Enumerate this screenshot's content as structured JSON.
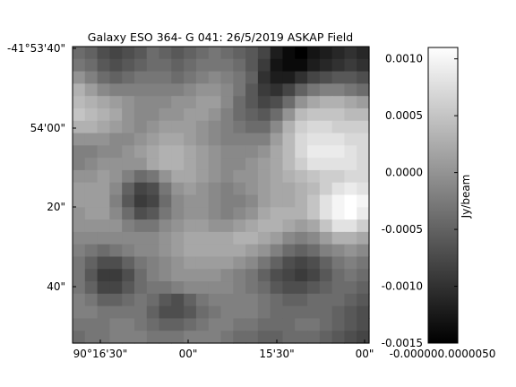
{
  "chart_data": {
    "type": "heatmap",
    "title": "Galaxy ESO 364- G 041: 26/5/2019 ASKAP Field",
    "colormap": "gray",
    "x_ticks": [
      "90°16'30\"",
      "00\"",
      "15'30\"",
      "00\""
    ],
    "y_ticks": [
      "-41°53'40\"",
      "54'00\"",
      "20\"",
      "40\""
    ],
    "colorbar": {
      "label": "Jy/beam",
      "vmin": -0.0015,
      "vmax": 0.0011,
      "ticks": [
        {
          "value": 0.001,
          "label": "0.0010"
        },
        {
          "value": 0.0005,
          "label": "0.0005"
        },
        {
          "value": 0.0,
          "label": "0.0000"
        },
        {
          "value": -0.0005,
          "label": "-0.0005"
        },
        {
          "value": -0.001,
          "label": "-0.0010"
        },
        {
          "value": -0.0015,
          "label": "-0.0015"
        }
      ],
      "bottom_labels": "-0.000000.0000050"
    },
    "grid_rows": 24,
    "grid_cols": 24,
    "values": [
      [
        -0.0004,
        -0.0005,
        -0.0007,
        -0.0008,
        -0.0007,
        -0.0006,
        -0.0004,
        -0.0005,
        -0.0006,
        -0.0005,
        -0.0004,
        -0.0003,
        -0.0004,
        -0.0005,
        -0.0006,
        -0.0008,
        -0.0012,
        -0.0014,
        -0.0015,
        -0.0013,
        -0.0012,
        -0.0011,
        -0.001,
        -0.0011
      ],
      [
        -0.0003,
        -0.0004,
        -0.0006,
        -0.0007,
        -0.0006,
        -0.0005,
        -0.0004,
        -0.0004,
        -0.0005,
        -0.0004,
        -0.0003,
        -0.0003,
        -0.0003,
        -0.0004,
        -0.0006,
        -0.0009,
        -0.0013,
        -0.0014,
        -0.0014,
        -0.0012,
        -0.0011,
        -0.001,
        -0.0009,
        -0.001
      ],
      [
        0.0,
        -0.0002,
        -0.0004,
        -0.0005,
        -0.0004,
        -0.0003,
        -0.0003,
        -0.0003,
        -0.0004,
        -0.0003,
        -0.0002,
        -0.0001,
        -0.0002,
        -0.0003,
        -0.0005,
        -0.001,
        -0.0012,
        -0.0012,
        -0.001,
        -0.0008,
        -0.0007,
        -0.0006,
        -0.0006,
        -0.0007
      ],
      [
        0.0003,
        0.0001,
        -0.0001,
        -0.0002,
        -0.0002,
        -0.0002,
        -0.0002,
        -0.0002,
        -0.0002,
        -0.0001,
        0.0,
        0.0,
        -0.0001,
        -0.0003,
        -0.0006,
        -0.0009,
        -0.001,
        -0.0008,
        -0.0005,
        -0.0003,
        -0.0002,
        -0.0002,
        -0.0003,
        -0.0004
      ],
      [
        0.0004,
        0.0003,
        0.0002,
        0.0001,
        0.0,
        -0.0001,
        -0.0001,
        -0.0001,
        0.0,
        0.0,
        0.0001,
        0.0001,
        -0.0001,
        -0.0004,
        -0.0006,
        -0.0008,
        -0.0007,
        -0.0004,
        0.0,
        0.0002,
        0.0003,
        0.0003,
        0.0002,
        0.0001
      ],
      [
        0.0005,
        0.0004,
        0.0003,
        0.0002,
        0.0,
        -0.0001,
        -0.0001,
        0.0,
        0.0,
        0.0001,
        0.0001,
        0.0,
        -0.0002,
        -0.0004,
        -0.0005,
        -0.0006,
        -0.0004,
        0.0,
        0.0004,
        0.0005,
        0.0005,
        0.0005,
        0.0004,
        0.0004
      ],
      [
        0.0003,
        0.0003,
        0.0002,
        0.0001,
        0.0,
        -0.0001,
        0.0,
        0.0001,
        0.0001,
        0.0001,
        0.0,
        -0.0001,
        -0.0002,
        -0.0003,
        -0.0004,
        -0.0004,
        -0.0001,
        0.0003,
        0.0006,
        0.0007,
        0.0007,
        0.0006,
        0.0006,
        0.0006
      ],
      [
        0.0,
        0.0,
        0.0,
        -0.0001,
        -0.0001,
        0.0,
        0.0001,
        0.0002,
        0.0002,
        0.0001,
        0.0,
        -0.0001,
        -0.0002,
        -0.0002,
        -0.0002,
        -0.0002,
        0.0001,
        0.0004,
        0.0007,
        0.0008,
        0.0008,
        0.0008,
        0.0007,
        0.0007
      ],
      [
        -0.0002,
        -0.0002,
        -0.0001,
        -0.0001,
        0.0,
        0.0001,
        0.0002,
        0.0003,
        0.0003,
        0.0002,
        0.0001,
        0.0,
        -0.0001,
        -0.0001,
        -0.0001,
        0.0,
        0.0002,
        0.0004,
        0.0007,
        0.0009,
        0.0009,
        0.0009,
        0.0008,
        0.0007
      ],
      [
        -0.0002,
        -0.0001,
        0.0,
        0.0,
        0.0,
        0.0,
        0.0002,
        0.0003,
        0.0003,
        0.0002,
        0.0001,
        0.0,
        -0.0001,
        -0.0001,
        0.0,
        0.0001,
        0.0002,
        0.0004,
        0.0006,
        0.0008,
        0.0008,
        0.0008,
        0.0008,
        0.0007
      ],
      [
        0.0,
        0.0,
        0.0001,
        0.0,
        -0.0002,
        -0.0004,
        -0.0003,
        0.0,
        0.0002,
        0.0002,
        0.0001,
        0.0,
        -0.0001,
        0.0,
        0.0,
        0.0001,
        0.0002,
        0.0003,
        0.0004,
        0.0005,
        0.0006,
        0.0006,
        0.0007,
        0.0007
      ],
      [
        0.0001,
        0.0001,
        0.0001,
        -0.0001,
        -0.0005,
        -0.0008,
        -0.0007,
        -0.0003,
        0.0,
        0.0001,
        0.0,
        -0.0001,
        -0.0002,
        -0.0001,
        0.0,
        0.0001,
        0.0002,
        0.0002,
        0.0003,
        0.0004,
        0.0006,
        0.0008,
        0.0009,
        0.0008
      ],
      [
        0.0001,
        0.0001,
        0.0001,
        -0.0002,
        -0.0006,
        -0.0009,
        -0.0008,
        -0.0004,
        -0.0001,
        0.0,
        0.0,
        -0.0001,
        -0.0002,
        -0.0002,
        -0.0001,
        0.0001,
        0.0002,
        0.0002,
        0.0003,
        0.0005,
        0.0008,
        0.001,
        0.0011,
        0.001
      ],
      [
        0.0,
        0.0001,
        0.0001,
        -0.0001,
        -0.0004,
        -0.0007,
        -0.0006,
        -0.0003,
        -0.0001,
        0.0,
        0.0,
        -0.0001,
        -0.0002,
        -0.0001,
        0.0,
        0.0002,
        0.0003,
        0.0003,
        0.0003,
        0.0005,
        0.0008,
        0.001,
        0.0011,
        0.0009
      ],
      [
        0.0,
        0.0,
        0.0,
        0.0,
        -0.0002,
        -0.0003,
        -0.0003,
        -0.0001,
        0.0,
        0.0001,
        0.0001,
        0.0,
        0.0,
        0.0001,
        0.0002,
        0.0003,
        0.0003,
        0.0002,
        0.0001,
        0.0002,
        0.0005,
        0.0008,
        0.0008,
        0.0006
      ],
      [
        -0.0001,
        -0.0001,
        -0.0001,
        -0.0001,
        -0.0001,
        -0.0001,
        -0.0001,
        0.0,
        0.0001,
        0.0002,
        0.0002,
        0.0002,
        0.0002,
        0.0003,
        0.0003,
        0.0002,
        0.0001,
        -0.0001,
        -0.0002,
        -0.0001,
        0.0001,
        0.0003,
        0.0003,
        0.0002
      ],
      [
        -0.0002,
        -0.0003,
        -0.0004,
        -0.0003,
        -0.0002,
        -0.0001,
        -0.0001,
        0.0,
        0.0001,
        0.0002,
        0.0002,
        0.0002,
        0.0002,
        0.0002,
        0.0001,
        0.0,
        -0.0002,
        -0.0004,
        -0.0005,
        -0.0004,
        -0.0002,
        -0.0001,
        0.0,
        -0.0001
      ],
      [
        -0.0003,
        -0.0005,
        -0.0007,
        -0.0007,
        -0.0005,
        -0.0003,
        -0.0002,
        -0.0001,
        0.0,
        0.0001,
        0.0001,
        0.0001,
        0.0001,
        0.0,
        -0.0001,
        -0.0003,
        -0.0005,
        -0.0007,
        -0.0008,
        -0.0007,
        -0.0005,
        -0.0003,
        -0.0002,
        -0.0003
      ],
      [
        -0.0003,
        -0.0006,
        -0.0009,
        -0.0009,
        -0.0007,
        -0.0004,
        -0.0002,
        -0.0001,
        0.0,
        0.0,
        0.0,
        0.0,
        -0.0001,
        -0.0002,
        -0.0003,
        -0.0005,
        -0.0007,
        -0.0008,
        -0.0009,
        -0.0008,
        -0.0006,
        -0.0004,
        -0.0003,
        -0.0004
      ],
      [
        -0.0003,
        -0.0005,
        -0.0008,
        -0.0008,
        -0.0006,
        -0.0004,
        -0.0003,
        -0.0003,
        -0.0002,
        -0.0001,
        -0.0001,
        -0.0001,
        -0.0001,
        -0.0002,
        -0.0003,
        -0.0004,
        -0.0006,
        -0.0007,
        -0.0007,
        -0.0006,
        -0.0005,
        -0.0004,
        -0.0004,
        -0.0005
      ],
      [
        -0.0002,
        -0.0003,
        -0.0005,
        -0.0005,
        -0.0004,
        -0.0003,
        -0.0004,
        -0.0006,
        -0.0007,
        -0.0005,
        -0.0003,
        -0.0002,
        -0.0002,
        -0.0002,
        -0.0002,
        -0.0003,
        -0.0004,
        -0.0005,
        -0.0005,
        -0.0004,
        -0.0004,
        -0.0004,
        -0.0005,
        -0.0006
      ],
      [
        -0.0002,
        -0.0002,
        -0.0003,
        -0.0003,
        -0.0003,
        -0.0003,
        -0.0005,
        -0.0007,
        -0.0007,
        -0.0006,
        -0.0004,
        -0.0003,
        -0.0002,
        -0.0002,
        -0.0002,
        -0.0003,
        -0.0004,
        -0.0004,
        -0.0004,
        -0.0004,
        -0.0004,
        -0.0005,
        -0.0006,
        -0.0007
      ],
      [
        -0.0003,
        -0.0003,
        -0.0003,
        -0.0002,
        -0.0002,
        -0.0003,
        -0.0004,
        -0.0005,
        -0.0005,
        -0.0004,
        -0.0003,
        -0.0002,
        -0.0002,
        -0.0003,
        -0.0003,
        -0.0004,
        -0.0004,
        -0.0004,
        -0.0003,
        -0.0003,
        -0.0004,
        -0.0005,
        -0.0006,
        -0.0007
      ],
      [
        -0.0004,
        -0.0003,
        -0.0003,
        -0.0002,
        -0.0002,
        -0.0002,
        -0.0003,
        -0.0003,
        -0.0003,
        -0.0002,
        -0.0002,
        -0.0002,
        -0.0003,
        -0.0004,
        -0.0004,
        -0.0005,
        -0.0005,
        -0.0004,
        -0.0004,
        -0.0004,
        -0.0005,
        -0.0006,
        -0.0007,
        -0.0008
      ]
    ]
  }
}
